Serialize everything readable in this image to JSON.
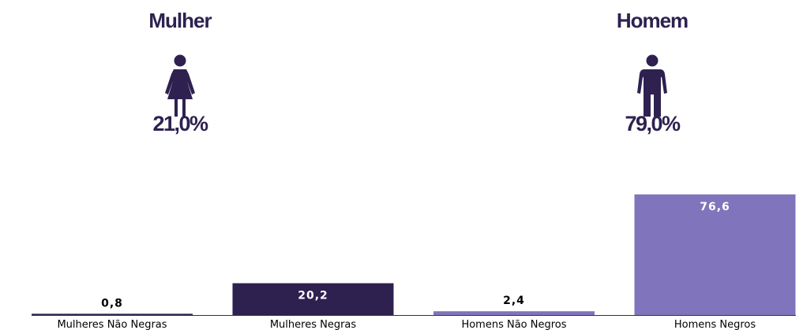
{
  "gender_summary": {
    "female": {
      "title": "Mulher",
      "percent": "21,0%",
      "icon": "female-person-icon"
    },
    "male": {
      "title": "Homem",
      "percent": "79,0%",
      "icon": "male-person-icon"
    }
  },
  "colors": {
    "dark": "#2e2150",
    "light": "#8075bc",
    "text_dark": "#000000",
    "text_light": "#ffffff"
  },
  "chart_data": {
    "type": "bar",
    "categories": [
      "Mulheres Não Negras",
      "Mulheres Negras",
      "Homens Não Negros",
      "Homens Negros"
    ],
    "values": [
      0.8,
      20.2,
      2.4,
      76.6
    ],
    "value_labels": [
      "0,8",
      "20,2",
      "2,4",
      "76,6"
    ],
    "bar_colors": [
      "#2e2150",
      "#2e2150",
      "#8075bc",
      "#8075bc"
    ],
    "label_colors": [
      "#000000",
      "#ffffff",
      "#000000",
      "#ffffff"
    ],
    "ylim": [
      0,
      100
    ],
    "grid": false,
    "legend": "none"
  }
}
